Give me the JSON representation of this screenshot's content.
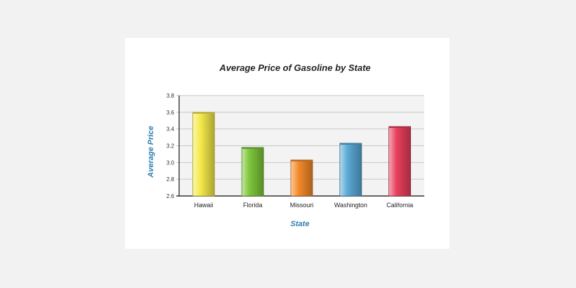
{
  "chart_data": {
    "type": "bar",
    "title": "Average Price of Gasoline by State",
    "xlabel": "State",
    "ylabel": "Average Price",
    "categories": [
      "Hawaii",
      "Florida",
      "Missouri",
      "Washington",
      "California"
    ],
    "values": [
      3.6,
      3.18,
      3.03,
      3.23,
      3.43
    ],
    "yticks": [
      "2.6",
      "2.8",
      "3.0",
      "3.2",
      "3.4",
      "3.6",
      "3.8"
    ],
    "ylim": [
      2.6,
      3.8
    ],
    "grid": true,
    "legend": "none",
    "colors": {
      "bars": [
        "#f5e94a",
        "#7dc63a",
        "#f48a2a",
        "#5aaad6",
        "#e8405c"
      ],
      "axis_title": "#2f7fb5",
      "grid": "#c8c8c8",
      "plot_bg": "#f3f3f3"
    }
  }
}
